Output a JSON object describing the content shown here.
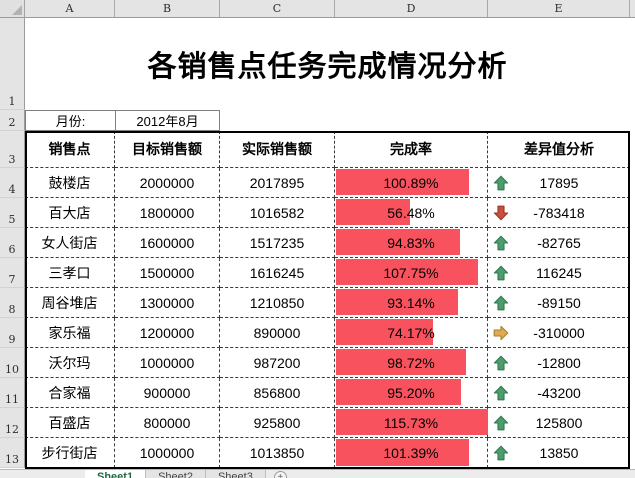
{
  "window": {
    "column_headers": [
      "A",
      "B",
      "C",
      "D",
      "E"
    ],
    "row_numbers": [
      "1",
      "2",
      "3",
      "4",
      "5",
      "6",
      "7",
      "8",
      "9",
      "10",
      "11",
      "12",
      "13"
    ]
  },
  "title": "各销售点任务完成情况分析",
  "period": {
    "label": "月份:",
    "value": "2012年8月"
  },
  "table": {
    "columns": {
      "store": "销售点",
      "target": "目标销售额",
      "actual": "实际销售额",
      "rate": "完成率",
      "diff": "差异值分析"
    },
    "rows": [
      {
        "store": "鼓楼店",
        "target": "2000000",
        "actual": "2017895",
        "rate": "100.89%",
        "bar_pct": 87.2,
        "icon": "up",
        "diff": "17895"
      },
      {
        "store": "百大店",
        "target": "1800000",
        "actual": "1016582",
        "rate": "56.48%",
        "bar_pct": 48.8,
        "icon": "down",
        "diff": "-783418"
      },
      {
        "store": "女人街店",
        "target": "1600000",
        "actual": "1517235",
        "rate": "94.83%",
        "bar_pct": 81.9,
        "icon": "up",
        "diff": "-82765"
      },
      {
        "store": "三孝口",
        "target": "1500000",
        "actual": "1616245",
        "rate": "107.75%",
        "bar_pct": 93.1,
        "icon": "up",
        "diff": "116245"
      },
      {
        "store": "周谷堆店",
        "target": "1300000",
        "actual": "1210850",
        "rate": "93.14%",
        "bar_pct": 80.5,
        "icon": "up",
        "diff": "-89150"
      },
      {
        "store": "家乐福",
        "target": "1200000",
        "actual": "890000",
        "rate": "74.17%",
        "bar_pct": 64.1,
        "icon": "right",
        "diff": "-310000"
      },
      {
        "store": "沃尔玛",
        "target": "1000000",
        "actual": "987200",
        "rate": "98.72%",
        "bar_pct": 85.3,
        "icon": "up",
        "diff": "-12800"
      },
      {
        "store": "合家福",
        "target": "900000",
        "actual": "856800",
        "rate": "95.20%",
        "bar_pct": 82.3,
        "icon": "up",
        "diff": "-43200"
      },
      {
        "store": "百盛店",
        "target": "800000",
        "actual": "925800",
        "rate": "115.73%",
        "bar_pct": 100,
        "icon": "up",
        "diff": "125800"
      },
      {
        "store": "步行街店",
        "target": "1000000",
        "actual": "1013850",
        "rate": "101.39%",
        "bar_pct": 87.6,
        "icon": "up",
        "diff": "13850"
      }
    ]
  },
  "colors": {
    "data_bar": "#f8525e",
    "icons": {
      "up": {
        "fill": "#4e9c6e",
        "stroke": "#2e7a50"
      },
      "down": {
        "fill": "#c94f3d",
        "stroke": "#97362a"
      },
      "right": {
        "fill": "#dfaa50",
        "stroke": "#a97d2f"
      }
    }
  },
  "sheet_bar": {
    "tabs": [
      "Sheet1",
      "Sheet2",
      "Sheet3"
    ],
    "new_sheet_label": "+"
  }
}
